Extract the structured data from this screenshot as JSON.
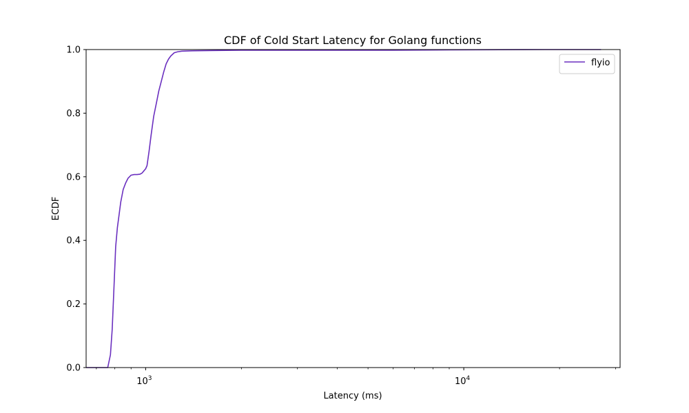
{
  "chart_data": {
    "type": "line",
    "title": "CDF of Cold Start Latency for Golang functions",
    "xlabel": "Latency (ms)",
    "ylabel": "ECDF",
    "xscale": "log",
    "xlim": [
      650,
      31000
    ],
    "ylim": [
      0,
      1.0
    ],
    "grid": false,
    "legend": "top-right",
    "x_ticks": [
      {
        "value": 1000,
        "base": "10",
        "exp": "3"
      },
      {
        "value": 10000,
        "base": "10",
        "exp": "4"
      }
    ],
    "y_tick_labels": [
      "0.0",
      "0.2",
      "0.4",
      "0.6",
      "0.8",
      "1.0"
    ],
    "y_tick_values": [
      0.0,
      0.2,
      0.4,
      0.6,
      0.8,
      1.0
    ],
    "series": [
      {
        "name": "flyio",
        "color": "#6a2fbf",
        "x": [
          650,
          760,
          775,
          785,
          795,
          805,
          815,
          825,
          835,
          850,
          865,
          880,
          900,
          920,
          940,
          960,
          975,
          990,
          1000,
          1010,
          1025,
          1040,
          1060,
          1080,
          1100,
          1120,
          1140,
          1160,
          1180,
          1200,
          1230,
          1260,
          1300,
          1400,
          1600,
          2000,
          3000,
          6000,
          9000,
          18000,
          27000
        ],
        "y": [
          0.0,
          0.0,
          0.04,
          0.12,
          0.25,
          0.38,
          0.44,
          0.48,
          0.52,
          0.56,
          0.58,
          0.595,
          0.605,
          0.607,
          0.607,
          0.608,
          0.612,
          0.62,
          0.625,
          0.635,
          0.68,
          0.73,
          0.79,
          0.83,
          0.87,
          0.9,
          0.93,
          0.955,
          0.97,
          0.98,
          0.99,
          0.993,
          0.995,
          0.996,
          0.997,
          0.998,
          0.998,
          0.998,
          0.999,
          1.0,
          1.0
        ]
      }
    ]
  }
}
